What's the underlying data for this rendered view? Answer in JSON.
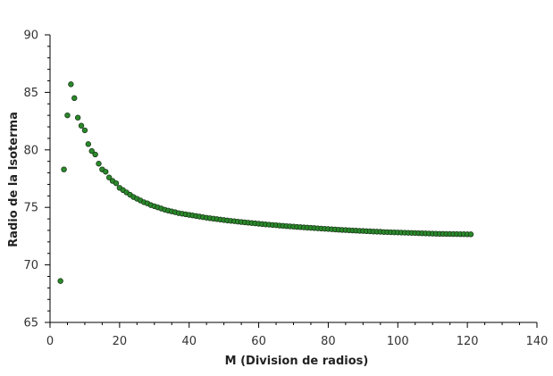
{
  "chart_data": {
    "type": "scatter",
    "xlabel": "M (Division de radios)",
    "ylabel": "Radio de la Isoterma",
    "xlim": [
      0,
      140
    ],
    "ylim": [
      65,
      90
    ],
    "x_ticks": [
      0,
      20,
      40,
      60,
      80,
      100,
      120,
      140
    ],
    "y_ticks": [
      65,
      70,
      75,
      80,
      85,
      90
    ],
    "x_minor_step": 5,
    "y_minor_step": 1,
    "grid": false,
    "marker_color": "#2a8a2a",
    "marker_edge_color": "#1a3a1a",
    "series": [
      {
        "x": [
          3,
          4,
          5,
          6,
          7,
          8,
          9,
          10,
          11,
          12,
          13,
          14,
          15,
          16,
          17,
          18,
          19,
          20,
          21,
          22,
          23,
          24,
          25,
          26,
          27,
          28,
          29,
          30,
          31,
          32,
          33,
          34,
          35,
          36,
          37,
          38,
          39,
          40,
          41,
          42,
          43,
          44,
          45,
          46,
          47,
          48,
          49,
          50,
          51,
          52,
          53,
          54,
          55,
          56,
          57,
          58,
          59,
          60,
          61,
          62,
          63,
          64,
          65,
          66,
          67,
          68,
          69,
          70,
          71,
          72,
          73,
          74,
          75,
          76,
          77,
          78,
          79,
          80,
          81,
          82,
          83,
          84,
          85,
          86,
          87,
          88,
          89,
          90,
          91,
          92,
          93,
          94,
          95,
          96,
          97,
          98,
          99,
          100,
          101,
          102,
          103,
          104,
          105,
          106,
          107,
          108,
          109,
          110,
          111,
          112,
          113,
          114,
          115,
          116,
          117,
          118,
          119,
          120,
          121
        ],
        "y": [
          68.6,
          78.3,
          83.0,
          85.7,
          84.5,
          82.8,
          82.1,
          81.7,
          80.5,
          79.9,
          79.6,
          78.8,
          78.3,
          78.1,
          77.6,
          77.3,
          77.1,
          76.7,
          76.5,
          76.3,
          76.1,
          75.9,
          75.75,
          75.6,
          75.45,
          75.35,
          75.2,
          75.1,
          75.0,
          74.9,
          74.8,
          74.72,
          74.65,
          74.58,
          74.5,
          74.45,
          74.4,
          74.35,
          74.3,
          74.25,
          74.2,
          74.15,
          74.1,
          74.06,
          74.02,
          73.98,
          73.94,
          73.9,
          73.86,
          73.83,
          73.8,
          73.76,
          73.73,
          73.7,
          73.67,
          73.64,
          73.61,
          73.58,
          73.55,
          73.52,
          73.5,
          73.47,
          73.45,
          73.42,
          73.4,
          73.37,
          73.35,
          73.33,
          73.3,
          73.28,
          73.26,
          73.24,
          73.22,
          73.2,
          73.18,
          73.16,
          73.14,
          73.12,
          73.1,
          73.08,
          73.06,
          73.04,
          73.03,
          73.01,
          72.99,
          72.98,
          72.96,
          72.95,
          72.93,
          72.92,
          72.9,
          72.89,
          72.88,
          72.86,
          72.85,
          72.84,
          72.83,
          72.82,
          72.81,
          72.8,
          72.79,
          72.78,
          72.77,
          72.76,
          72.75,
          72.74,
          72.73,
          72.72,
          72.71,
          72.7,
          72.7,
          72.69,
          72.69,
          72.68,
          72.68,
          72.67,
          72.67,
          72.66,
          72.66
        ]
      }
    ]
  }
}
